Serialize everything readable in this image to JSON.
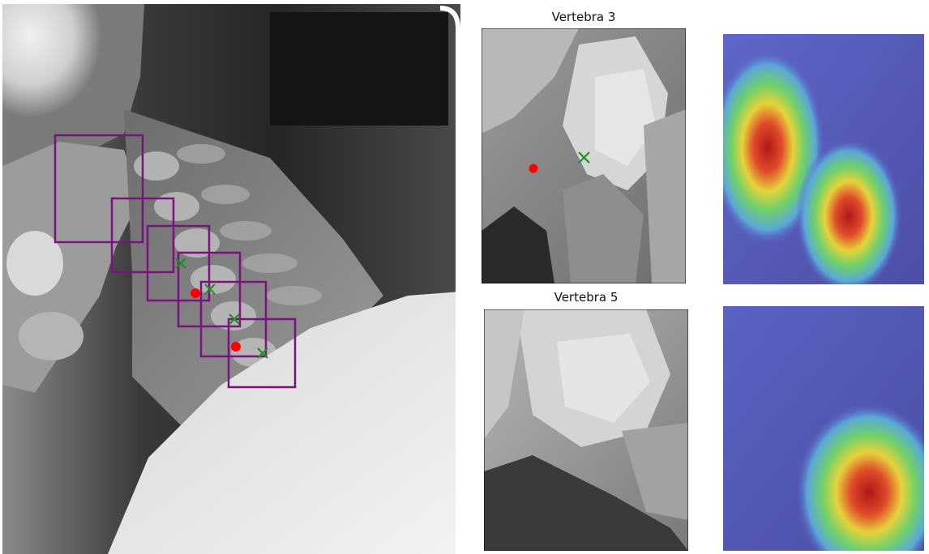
{
  "figure": {
    "xray_panel": {
      "boxes_color": "#7b137f",
      "marker_red": "#ff0000",
      "marker_green": "#1f8f1f",
      "vertebra_box_count": 6,
      "red_dot_count": 2,
      "green_x_count": 4
    },
    "crop_panels": [
      {
        "title": "Vertebra 3",
        "has_red_dot": true,
        "has_green_x": true
      },
      {
        "title": "Vertebra 5",
        "has_red_dot": false,
        "has_green_x": false
      }
    ],
    "heatmap_panels": [
      {
        "colormap": "jet overlay",
        "hotspots": 2
      },
      {
        "colormap": "jet overlay",
        "hotspots": 1
      }
    ]
  }
}
